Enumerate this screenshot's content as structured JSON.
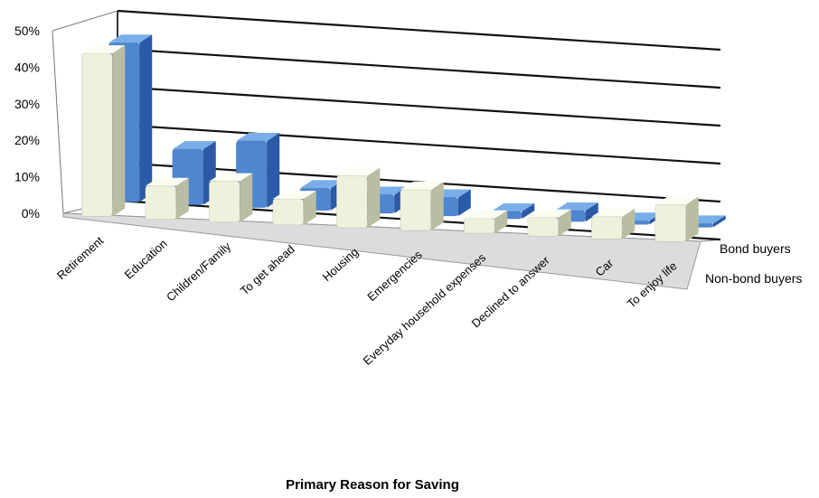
{
  "chart_data": {
    "type": "bar",
    "title": "",
    "xlabel": "Primary Reason for Saving",
    "ylabel": "",
    "ylim": [
      0,
      50
    ],
    "y_ticks": [
      "0%",
      "10%",
      "20%",
      "30%",
      "40%",
      "50%"
    ],
    "categories": [
      "Retirement",
      "Education",
      "Children/Family",
      "To get ahead",
      "Housing",
      "Emergencies",
      "Everyday household expenses",
      "Declined to answer",
      "Car",
      "To enjoy life"
    ],
    "series": [
      {
        "name": "Non-bond buyers",
        "color": "#eef1dc",
        "values": [
          44,
          9,
          11,
          7,
          14,
          11,
          4,
          5,
          6,
          10
        ]
      },
      {
        "name": "Bond buyers",
        "color": "#4f86d0",
        "values": [
          43,
          15,
          18,
          6,
          5,
          5,
          2,
          3,
          1,
          1
        ]
      }
    ],
    "grid": true,
    "view": "3d-perspective"
  }
}
